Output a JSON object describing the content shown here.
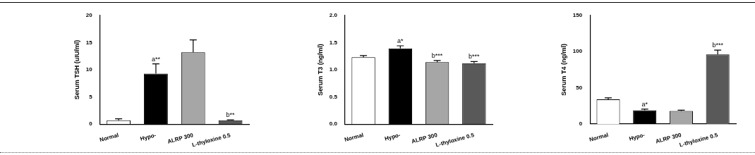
{
  "chart_data": [
    {
      "type": "bar",
      "y_label": "Serum TSH (uIU/ml)",
      "categories": [
        "Normal",
        "Hypo-",
        "ALRP 300",
        "L-thyloxine 0.5"
      ],
      "values": [
        0.7,
        9.3,
        13.2,
        0.7
      ],
      "errors": [
        0.3,
        1.8,
        2.3,
        0.1
      ],
      "annotations": [
        null,
        "a**",
        null,
        "b**"
      ],
      "colors": [
        "#ffffff",
        "#000000",
        "#a6a6a6",
        "#595959"
      ],
      "ylim": [
        0,
        20
      ],
      "yticks": [
        0,
        5,
        10,
        15,
        20
      ],
      "grid": false
    },
    {
      "type": "bar",
      "y_label": "Serum T3 (ng/ml)",
      "categories": [
        "Normal",
        "Hypo-",
        "ALRP 300",
        "L-thyloxine 0.5"
      ],
      "values": [
        1.23,
        1.39,
        1.14,
        1.12
      ],
      "errors": [
        0.03,
        0.05,
        0.03,
        0.03
      ],
      "annotations": [
        null,
        "a*",
        "b***",
        "b***"
      ],
      "colors": [
        "#ffffff",
        "#000000",
        "#a6a6a6",
        "#595959"
      ],
      "ylim": [
        0,
        2
      ],
      "yticks": [
        {
          "value": 0,
          "label": "0.0"
        },
        {
          "value": 0.5,
          "label": "0.5"
        },
        {
          "value": 1,
          "label": "1.0"
        },
        {
          "value": 1.5,
          "label": "1.5"
        },
        {
          "value": 2,
          "label": "2.0"
        }
      ],
      "grid": false
    },
    {
      "type": "bar",
      "y_label": "Serum T4 (ng/ml)",
      "categories": [
        "Normal",
        "Hypo-",
        "ALRP 300",
        "L-thyloxine 0.5"
      ],
      "values": [
        34,
        19,
        18,
        96
      ],
      "errors": [
        2,
        1.5,
        1,
        6
      ],
      "annotations": [
        null,
        "a*",
        null,
        "b***"
      ],
      "colors": [
        "#ffffff",
        "#000000",
        "#a6a6a6",
        "#595959"
      ],
      "ylim": [
        0,
        150
      ],
      "yticks": [
        0,
        50,
        100,
        150
      ],
      "grid": false
    }
  ]
}
